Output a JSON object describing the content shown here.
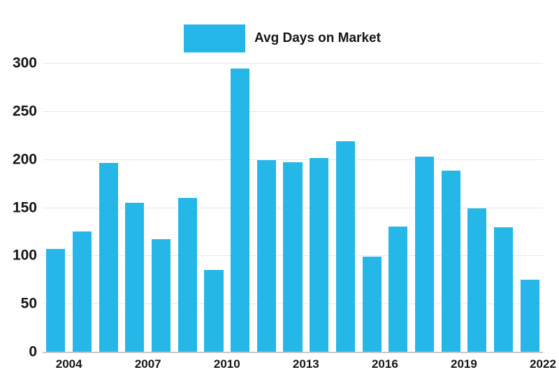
{
  "colors": {
    "bar": "#26b7e9",
    "gridline": "#e7e7e7",
    "axis_line": "#c9c9c9",
    "text": "#161616",
    "background": "#ffffff"
  },
  "legend": {
    "label": "Avg Days on Market"
  },
  "chart_data": {
    "type": "bar",
    "title": "",
    "xlabel": "",
    "ylabel": "",
    "grid": "horizontal",
    "legend_position": "top",
    "ylim": [
      0,
      300
    ],
    "y_ticks": [
      0,
      50,
      100,
      150,
      200,
      250,
      300
    ],
    "categories": [
      "2004",
      "2005",
      "2006",
      "2007",
      "2008",
      "2009",
      "2010",
      "2011",
      "2012",
      "2013",
      "2014",
      "2015",
      "2016",
      "2017",
      "2018",
      "2019",
      "2020",
      "2021",
      "2022"
    ],
    "x_tick_labels": [
      "2004",
      "2007",
      "2010",
      "2013",
      "2016",
      "2019",
      "2022"
    ],
    "series": [
      {
        "name": "Avg Days on Market",
        "values": [
          107,
          125,
          196,
          155,
          117,
          160,
          85,
          294,
          199,
          197,
          201,
          219,
          99,
          130,
          203,
          188,
          149,
          129,
          75
        ]
      }
    ]
  }
}
